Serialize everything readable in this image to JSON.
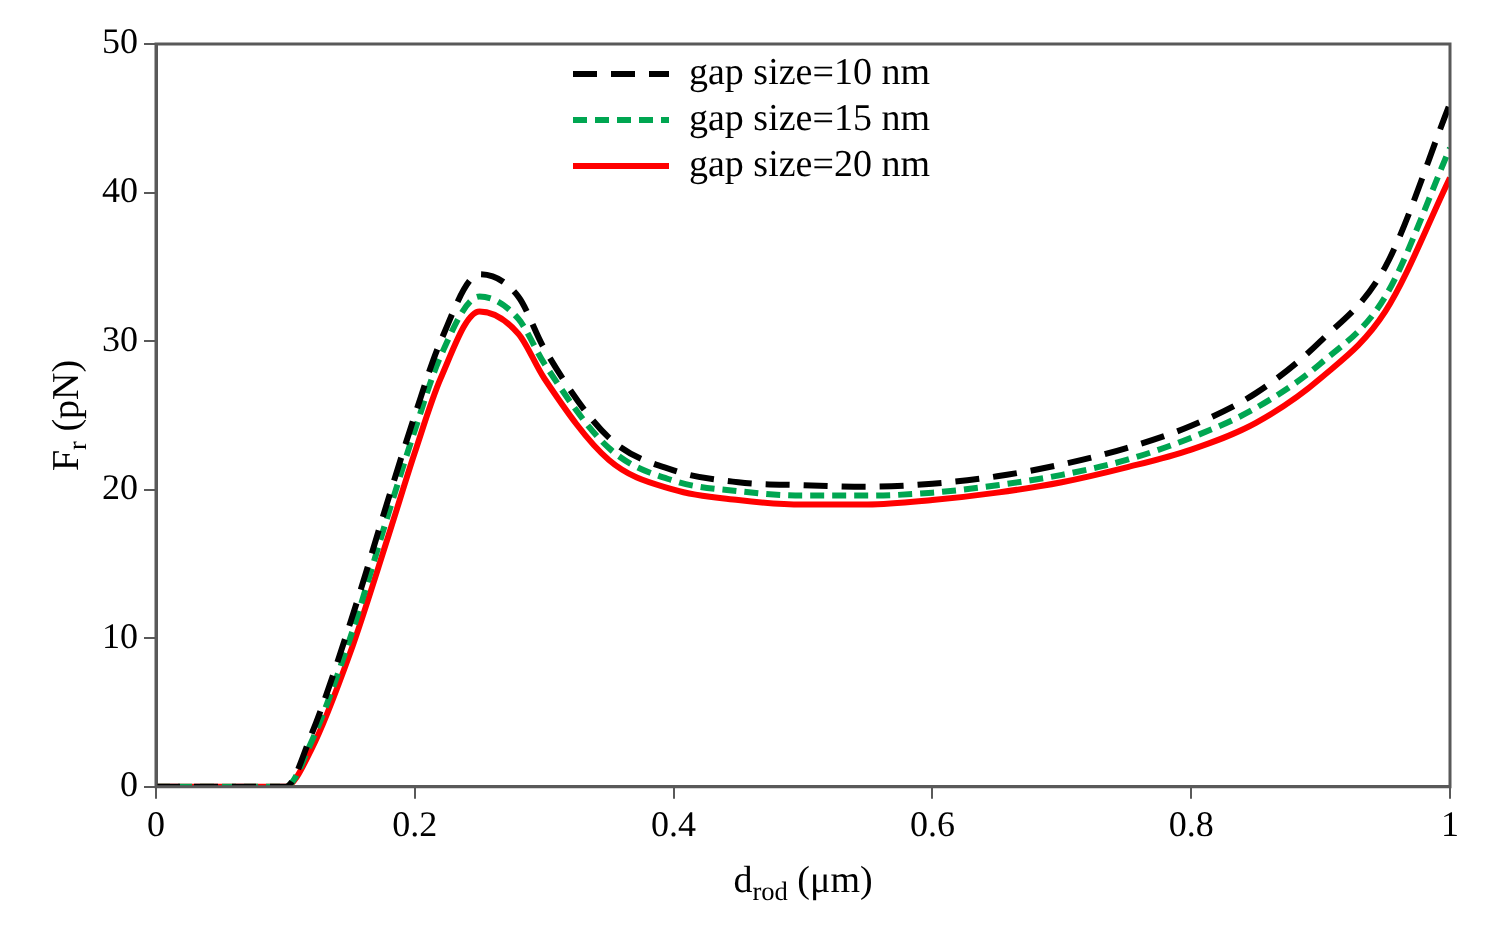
{
  "chart_data": {
    "type": "line",
    "xlabel": "d$_{rod}$ (μm)",
    "ylabel": "F$_{r}$ (pN)",
    "x": [
      0,
      0.1,
      0.12,
      0.15,
      0.18,
      0.2,
      0.22,
      0.25,
      0.28,
      0.3,
      0.35,
      0.4,
      0.45,
      0.5,
      0.55,
      0.6,
      0.65,
      0.7,
      0.75,
      0.8,
      0.85,
      0.9,
      0.95,
      1.0
    ],
    "series": [
      {
        "name": "gap size=10 nm",
        "color": "#000000",
        "line_style": "dashed",
        "values": [
          0,
          0,
          3.5,
          11,
          19.5,
          25,
          30,
          34.5,
          33,
          29.5,
          23.5,
          21.3,
          20.5,
          20.3,
          20.2,
          20.4,
          20.9,
          21.7,
          22.8,
          24.3,
          26.5,
          30,
          35,
          46
        ]
      },
      {
        "name": "gap size=15 nm",
        "color": "#00a651",
        "line_style": "dotted",
        "values": [
          0,
          0,
          3,
          10,
          18.5,
          24,
          29,
          33,
          31.5,
          28.5,
          22.8,
          20.6,
          19.9,
          19.6,
          19.6,
          19.8,
          20.3,
          21,
          22,
          23.5,
          25.5,
          28.5,
          33,
          43
        ]
      },
      {
        "name": "gap size=20 nm",
        "color": "#ff0000",
        "line_style": "solid",
        "values": [
          0,
          0,
          2.5,
          9,
          17,
          22.5,
          27.5,
          32,
          30.5,
          27.5,
          22,
          20,
          19.3,
          19,
          19,
          19.3,
          19.8,
          20.5,
          21.5,
          22.7,
          24.5,
          27.5,
          32,
          41
        ]
      }
    ],
    "xlim": [
      0,
      1
    ],
    "xticks": [
      0,
      0.2,
      0.4,
      0.6,
      0.8,
      1
    ],
    "ylim": [
      0,
      50
    ],
    "yticks": [
      0,
      10,
      20,
      30,
      40,
      50
    ],
    "grid": false,
    "legend": "top",
    "marker": "none"
  }
}
